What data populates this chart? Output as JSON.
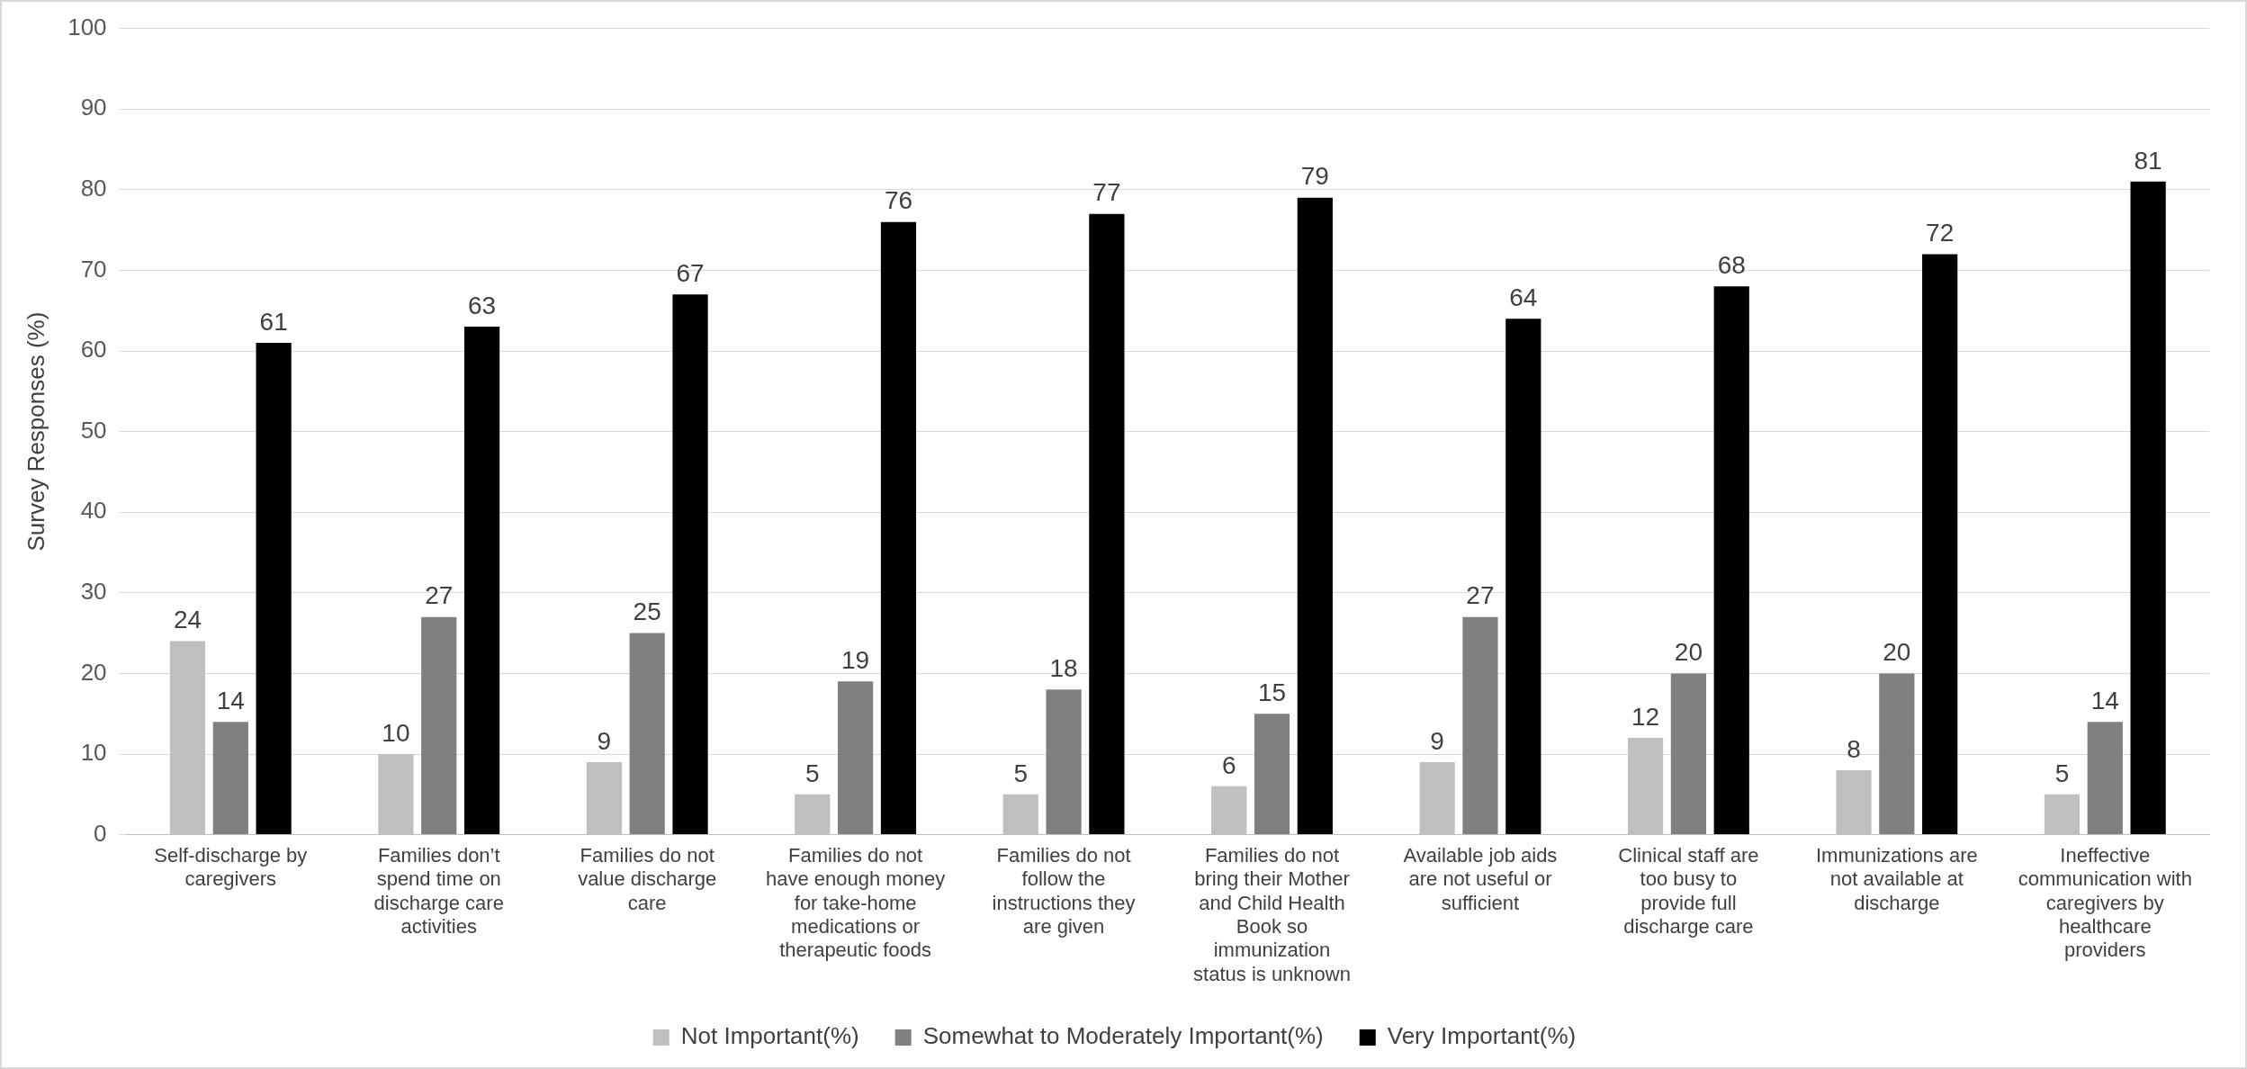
{
  "chart_data": {
    "type": "bar",
    "ylabel": "Survey Responses (%)",
    "categories": [
      "Self-discharge by caregivers",
      "Families don’t spend time on discharge care activities",
      "Families do not value discharge care",
      "Families do not have enough money for take-home medications or therapeutic foods",
      "Families do not follow the instructions they are given",
      "Families do not bring their Mother and Child Health Book so immunization status is unknown",
      "Available job aids are not useful or sufficient",
      "Clinical staff are too busy to provide full discharge care",
      "Immunizations are not available at discharge",
      "Ineffective communication with caregivers by healthcare providers"
    ],
    "series": [
      {
        "name": "Not Important(%)",
        "color": "#bfbfbf",
        "values": [
          24,
          10,
          9,
          5,
          5,
          6,
          9,
          12,
          8,
          5
        ]
      },
      {
        "name": "Somewhat to Moderately Important(%)",
        "color": "#808080",
        "values": [
          14,
          27,
          25,
          19,
          18,
          15,
          27,
          20,
          20,
          14
        ]
      },
      {
        "name": "Very Important(%)",
        "color": "#000000",
        "values": [
          61,
          63,
          67,
          76,
          77,
          79,
          64,
          68,
          72,
          81
        ]
      }
    ],
    "ylim": [
      0,
      100
    ],
    "yticks": [
      0,
      10,
      20,
      30,
      40,
      50,
      60,
      70,
      80,
      90,
      100
    ],
    "grid": "y",
    "legend": "bottom",
    "data_labels": true
  }
}
